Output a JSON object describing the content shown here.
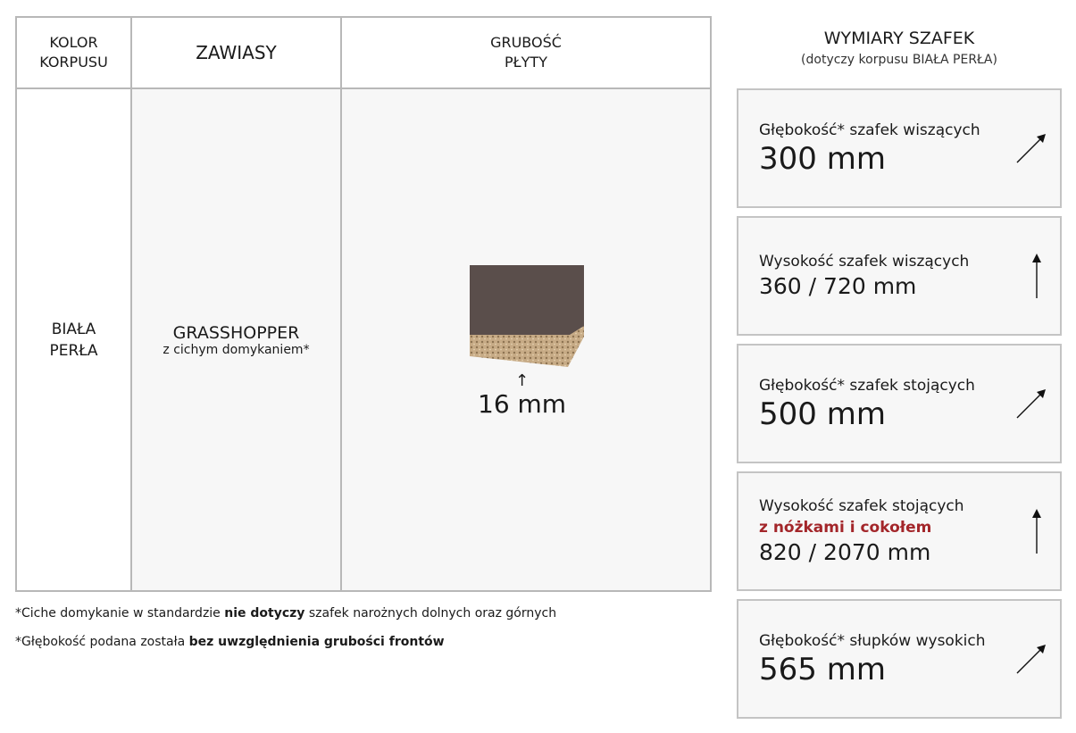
{
  "table": {
    "headers": [
      "KOLOR\nKORPUSU",
      "ZAWIASY",
      "GRUBOŚĆ\nPŁYTY"
    ],
    "color": "BIAŁA\nPERŁA",
    "hinge_name": "GRASSHOPPER",
    "hinge_note": "z cichym domykaniem*",
    "thickness": "16 mm"
  },
  "footnotes": [
    {
      "pre": "*Ciche domykanie w standardzie ",
      "bold": "nie dotyczy",
      "post": " szafek narożnych dolnych oraz górnych"
    },
    {
      "pre": "*Głębokość podana została ",
      "bold": "bez uwzględnienia grubości frontów",
      "post": ""
    }
  ],
  "dimensions": {
    "title": "WYMIARY SZAFEK",
    "subtitle": "(dotyczy korpusu BIAŁA PERŁA)",
    "cards": [
      {
        "label": "Głębokość* szafek wiszących",
        "value": "300 mm",
        "icon": "diagonal-arrow"
      },
      {
        "label": "Wysokość szafek wiszących",
        "value": "360 / 720 mm",
        "icon": "up-arrow"
      },
      {
        "label": "Głębokość* szafek stojących",
        "value": "500 mm",
        "icon": "diagonal-arrow"
      },
      {
        "label": "Wysokość szafek stojących",
        "highlight": "z nóżkami i cokołem",
        "value": "820 / 2070 mm",
        "icon": "up-arrow"
      },
      {
        "label": "Głębokość* słupków wysokich",
        "value": "565 mm",
        "icon": "diagonal-arrow"
      }
    ],
    "accent": "#a3262a"
  }
}
